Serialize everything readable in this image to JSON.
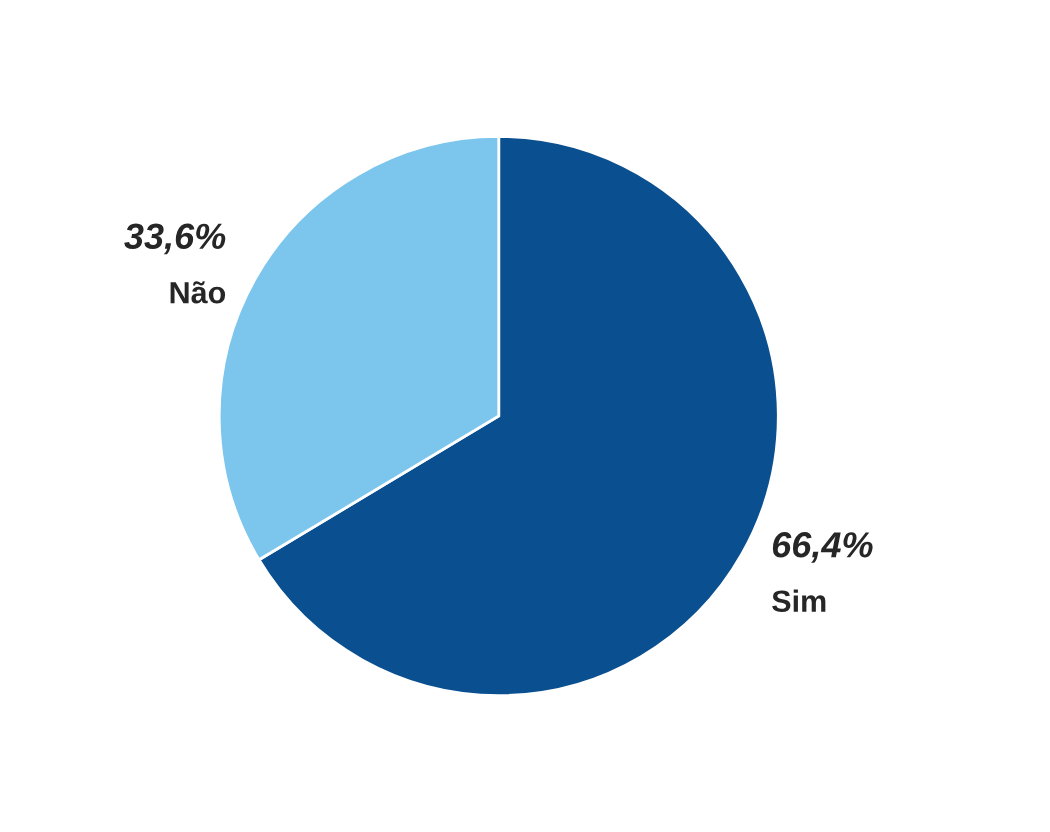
{
  "chart_data": {
    "type": "pie",
    "categories": [
      "Sim",
      "Não"
    ],
    "values": [
      66.4,
      33.6
    ],
    "value_labels": [
      "66,4%",
      "33,6%"
    ],
    "colors": [
      "#0a4f8f",
      "#7cc6ee"
    ]
  }
}
